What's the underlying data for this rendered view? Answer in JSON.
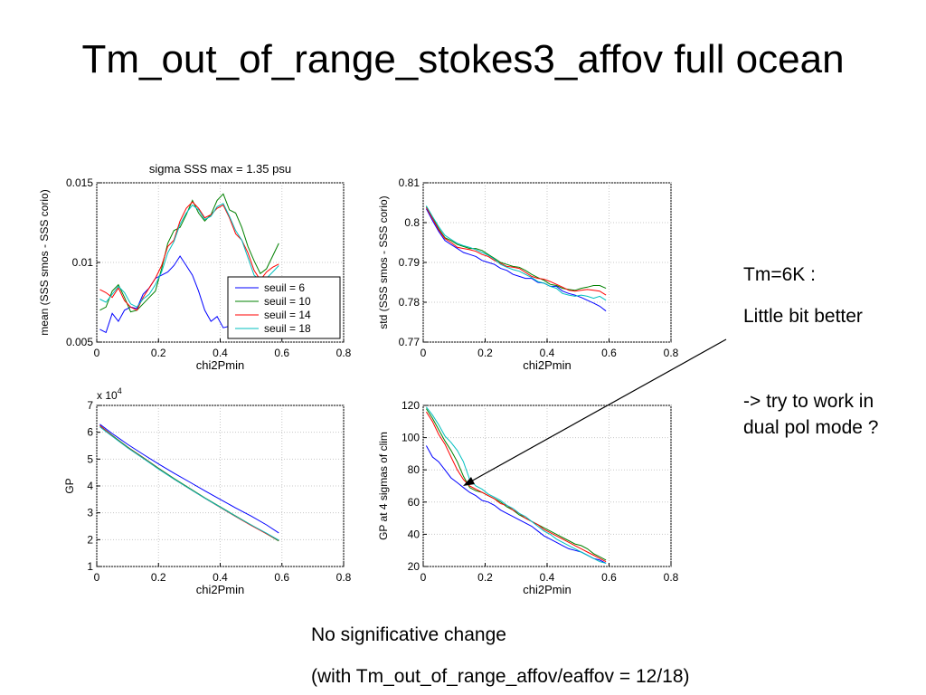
{
  "slide": {
    "title": "Tm_out_of_range_stokes3_affov full ocean",
    "notes": {
      "tm": "Tm=6K :",
      "better": "Little bit better",
      "try": "-> try to work in",
      "dual": "dual pol mode ?",
      "no_change": "No significative change",
      "with": "(with Tm_out_of_range_affov/eaffov = 12/18)"
    }
  },
  "colors": {
    "seuil_6": "#0000ff",
    "seuil_10": "#008000",
    "seuil_14": "#ff0000",
    "seuil_18": "#00bfbf"
  },
  "chart_data": [
    {
      "type": "line",
      "title": "sigma SSS max = 1.35 psu",
      "xlabel": "chi2Pmin",
      "ylabel": "mean (SSS smos - SSS corio)",
      "xlim": [
        0,
        0.8
      ],
      "ylim": [
        0.005,
        0.015
      ],
      "xticks": [
        "0",
        "0.2",
        "0.4",
        "0.6",
        "0.8"
      ],
      "yticks": [
        "0.005",
        "0.01",
        "0.015"
      ],
      "grid": true,
      "legend": "lower-right",
      "x": [
        0.01,
        0.03,
        0.05,
        0.07,
        0.09,
        0.11,
        0.13,
        0.15,
        0.17,
        0.19,
        0.21,
        0.23,
        0.25,
        0.27,
        0.29,
        0.31,
        0.33,
        0.35,
        0.37,
        0.39,
        0.41,
        0.43,
        0.45,
        0.47,
        0.49,
        0.51,
        0.53,
        0.55,
        0.57,
        0.59
      ],
      "series": [
        {
          "name": "seuil = 6",
          "color": "#0000ff",
          "values": [
            0.0058,
            0.0056,
            0.0068,
            0.0063,
            0.007,
            0.0072,
            0.0071,
            0.008,
            0.0084,
            0.009,
            0.0092,
            0.0094,
            0.0098,
            0.0104,
            0.0098,
            0.0092,
            0.0082,
            0.007,
            0.0063,
            0.0066,
            0.0059,
            0.006,
            0.0058,
            0.0059,
            0.006,
            0.0059,
            0.0061,
            0.006,
            0.006,
            0.0061
          ]
        },
        {
          "name": "seuil = 10",
          "color": "#008000",
          "values": [
            0.007,
            0.0072,
            0.0082,
            0.0086,
            0.0078,
            0.0069,
            0.007,
            0.0074,
            0.0078,
            0.0082,
            0.0096,
            0.0112,
            0.012,
            0.0122,
            0.013,
            0.0139,
            0.0131,
            0.0126,
            0.013,
            0.0139,
            0.0143,
            0.0133,
            0.0131,
            0.0122,
            0.011,
            0.0101,
            0.0093,
            0.0096,
            0.0104,
            0.0112
          ]
        },
        {
          "name": "seuil = 14",
          "color": "#ff0000",
          "values": [
            0.0083,
            0.0081,
            0.0078,
            0.0084,
            0.0076,
            0.0072,
            0.007,
            0.0078,
            0.0084,
            0.009,
            0.0098,
            0.011,
            0.0114,
            0.0126,
            0.0134,
            0.0138,
            0.0134,
            0.0128,
            0.013,
            0.0134,
            0.0136,
            0.0128,
            0.0118,
            0.0114,
            0.0106,
            0.0095,
            0.0089,
            0.0094,
            0.0097,
            0.0099
          ]
        },
        {
          "name": "seuil = 18",
          "color": "#00bfbf",
          "values": [
            0.0077,
            0.0075,
            0.008,
            0.0085,
            0.0081,
            0.0074,
            0.0072,
            0.0077,
            0.008,
            0.0086,
            0.0094,
            0.0106,
            0.0113,
            0.0124,
            0.0131,
            0.0136,
            0.0133,
            0.0127,
            0.0129,
            0.0135,
            0.0137,
            0.0129,
            0.012,
            0.0114,
            0.0103,
            0.0092,
            0.0089,
            0.009,
            0.0094,
            0.0098
          ]
        }
      ]
    },
    {
      "type": "line",
      "xlabel": "chi2Pmin",
      "ylabel": "std (SSS smos - SSS corio)",
      "xlim": [
        0,
        0.8
      ],
      "ylim": [
        0.77,
        0.81
      ],
      "xticks": [
        "0",
        "0.2",
        "0.4",
        "0.6",
        "0.8"
      ],
      "yticks": [
        "0.77",
        "0.78",
        "0.79",
        "0.8",
        "0.81"
      ],
      "grid": true,
      "x": [
        0.01,
        0.03,
        0.05,
        0.07,
        0.09,
        0.11,
        0.13,
        0.15,
        0.17,
        0.19,
        0.21,
        0.23,
        0.25,
        0.27,
        0.29,
        0.31,
        0.33,
        0.35,
        0.37,
        0.39,
        0.41,
        0.43,
        0.45,
        0.47,
        0.49,
        0.51,
        0.53,
        0.55,
        0.57,
        0.59
      ],
      "series": [
        {
          "color": "#0000ff",
          "values": [
            0.8035,
            0.8005,
            0.7978,
            0.7955,
            0.7945,
            0.7935,
            0.7925,
            0.792,
            0.7915,
            0.7905,
            0.79,
            0.7895,
            0.7885,
            0.788,
            0.787,
            0.7865,
            0.786,
            0.786,
            0.785,
            0.7848,
            0.784,
            0.784,
            0.7828,
            0.7822,
            0.7818,
            0.7812,
            0.7805,
            0.7798,
            0.779,
            0.7778
          ]
        },
        {
          "color": "#008000",
          "values": [
            0.804,
            0.8012,
            0.7985,
            0.7962,
            0.7955,
            0.7945,
            0.794,
            0.7935,
            0.7935,
            0.793,
            0.792,
            0.791,
            0.79,
            0.7895,
            0.789,
            0.7888,
            0.788,
            0.787,
            0.7862,
            0.7855,
            0.7845,
            0.7842,
            0.7835,
            0.7832,
            0.783,
            0.7835,
            0.7838,
            0.7842,
            0.7842,
            0.7835
          ]
        },
        {
          "color": "#ff0000",
          "values": [
            0.8038,
            0.801,
            0.7982,
            0.796,
            0.795,
            0.7938,
            0.7935,
            0.7932,
            0.7928,
            0.792,
            0.7915,
            0.7905,
            0.7898,
            0.789,
            0.7888,
            0.7885,
            0.7875,
            0.7865,
            0.786,
            0.7858,
            0.7852,
            0.7845,
            0.7838,
            0.783,
            0.7828,
            0.783,
            0.7832,
            0.783,
            0.7828,
            0.7818
          ]
        },
        {
          "color": "#00bfbf",
          "values": [
            0.8042,
            0.8015,
            0.799,
            0.7968,
            0.7958,
            0.7948,
            0.7942,
            0.7938,
            0.7932,
            0.7925,
            0.7918,
            0.7908,
            0.7895,
            0.7888,
            0.7882,
            0.7878,
            0.787,
            0.7862,
            0.7852,
            0.7848,
            0.784,
            0.7835,
            0.7822,
            0.7818,
            0.7815,
            0.7818,
            0.7815,
            0.781,
            0.7815,
            0.7805
          ]
        }
      ]
    },
    {
      "type": "line",
      "xlabel": "chi2Pmin",
      "ylabel": "GP",
      "multiplier": "x 10^4",
      "xlim": [
        0,
        0.8
      ],
      "ylim": [
        1,
        7
      ],
      "xticks": [
        "0",
        "0.2",
        "0.4",
        "0.6",
        "0.8"
      ],
      "yticks": [
        "1",
        "2",
        "3",
        "4",
        "5",
        "6",
        "7"
      ],
      "grid": true,
      "x": [
        0.01,
        0.05,
        0.1,
        0.15,
        0.2,
        0.25,
        0.3,
        0.35,
        0.4,
        0.45,
        0.5,
        0.55,
        0.59
      ],
      "series": [
        {
          "color": "#0000ff",
          "values": [
            6.3,
            5.95,
            5.55,
            5.18,
            4.82,
            4.48,
            4.15,
            3.82,
            3.5,
            3.18,
            2.88,
            2.55,
            2.25
          ]
        },
        {
          "color": "#008000",
          "values": [
            6.25,
            5.88,
            5.45,
            5.06,
            4.66,
            4.28,
            3.92,
            3.56,
            3.22,
            2.88,
            2.55,
            2.22,
            1.95
          ]
        },
        {
          "color": "#ff0000",
          "values": [
            6.25,
            5.86,
            5.43,
            5.04,
            4.64,
            4.26,
            3.9,
            3.55,
            3.2,
            2.86,
            2.53,
            2.22,
            1.97
          ]
        },
        {
          "color": "#00bfbf",
          "values": [
            6.2,
            5.85,
            5.42,
            5.03,
            4.63,
            4.26,
            3.9,
            3.55,
            3.21,
            2.87,
            2.55,
            2.24,
            1.98
          ]
        }
      ]
    },
    {
      "type": "line",
      "xlabel": "chi2Pmin",
      "ylabel": "GP at 4 sigmas of clim",
      "xlim": [
        0,
        0.8
      ],
      "ylim": [
        20,
        120
      ],
      "xticks": [
        "0",
        "0.2",
        "0.4",
        "0.6",
        "0.8"
      ],
      "yticks": [
        "20",
        "40",
        "60",
        "80",
        "100",
        "120"
      ],
      "grid": true,
      "x": [
        0.01,
        0.03,
        0.05,
        0.07,
        0.09,
        0.11,
        0.13,
        0.15,
        0.17,
        0.19,
        0.21,
        0.23,
        0.25,
        0.27,
        0.29,
        0.31,
        0.33,
        0.35,
        0.37,
        0.39,
        0.41,
        0.43,
        0.45,
        0.47,
        0.49,
        0.51,
        0.53,
        0.55,
        0.57,
        0.59
      ],
      "series": [
        {
          "color": "#0000ff",
          "values": [
            95,
            88,
            85,
            80,
            75,
            72,
            69,
            66,
            64,
            61,
            60,
            58,
            55,
            53,
            51,
            49,
            47,
            45,
            42,
            39,
            37,
            35,
            33,
            31,
            30,
            29,
            27,
            25,
            24,
            22
          ]
        },
        {
          "color": "#008000",
          "values": [
            118,
            112,
            105,
            98,
            92,
            85,
            76,
            69,
            67,
            66,
            64,
            62,
            60,
            57,
            55,
            52,
            50,
            48,
            46,
            44,
            42,
            40,
            38,
            36,
            34,
            33,
            31,
            28,
            26,
            24
          ]
        },
        {
          "color": "#ff0000",
          "values": [
            116,
            110,
            102,
            96,
            88,
            80,
            74,
            70,
            68,
            66,
            64,
            62,
            59,
            58,
            55,
            53,
            50,
            48,
            46,
            43,
            41,
            39,
            37,
            35,
            33,
            31,
            29,
            27,
            25,
            23
          ]
        },
        {
          "color": "#00bfbf",
          "values": [
            119,
            114,
            108,
            101,
            97,
            92,
            85,
            74,
            70,
            68,
            65,
            63,
            61,
            58,
            56,
            53,
            51,
            48,
            45,
            42,
            40,
            37,
            35,
            33,
            31,
            29,
            27,
            25,
            23,
            22
          ]
        }
      ]
    }
  ]
}
